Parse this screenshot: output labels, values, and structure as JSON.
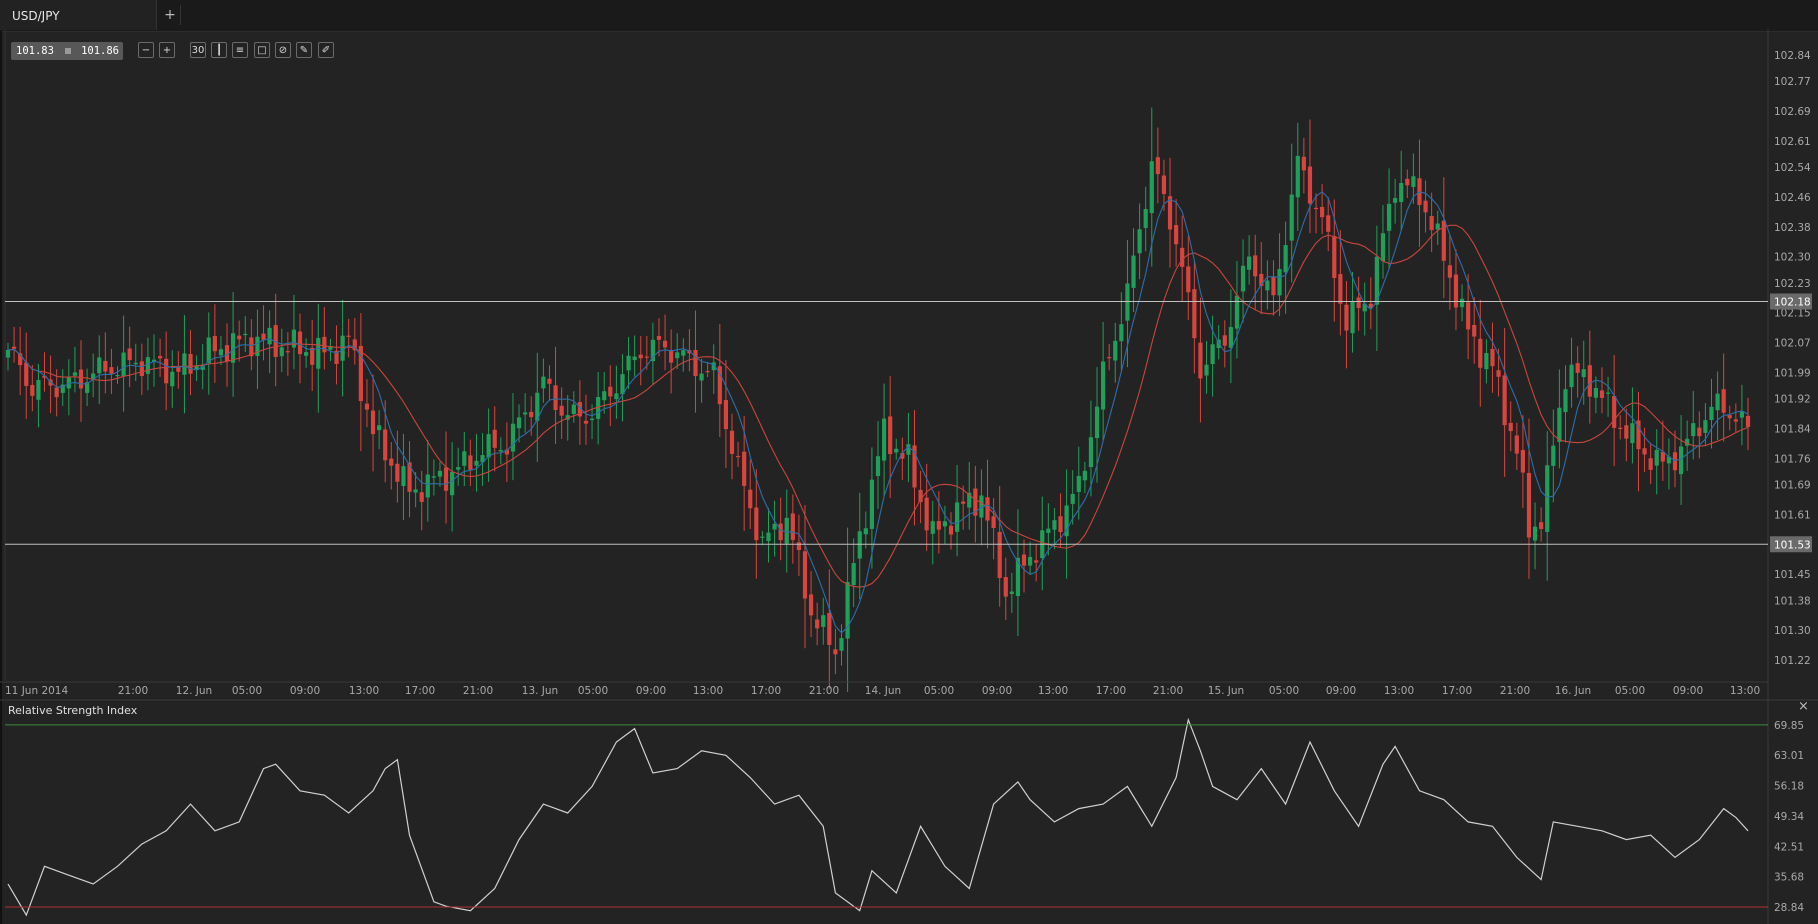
{
  "tab": {
    "label": "USD/JPY",
    "add_label": "+"
  },
  "quote": {
    "bid": "101.83",
    "ask": "101.86"
  },
  "toolbar": {
    "items": [
      {
        "name": "zoom-out-button",
        "glyph": "−"
      },
      {
        "name": "zoom-in-button",
        "glyph": "+"
      },
      {
        "name": "timeframe-button",
        "glyph": "30"
      },
      {
        "name": "chart-type-button",
        "glyph": "┃"
      },
      {
        "name": "indicators-button",
        "glyph": "≡"
      },
      {
        "name": "studies-button",
        "glyph": "□"
      },
      {
        "name": "template-button",
        "glyph": "⊘"
      },
      {
        "name": "draw-button",
        "glyph": "✎"
      },
      {
        "name": "pen-button",
        "glyph": "✐"
      }
    ]
  },
  "colors": {
    "background": "#232323",
    "up": "#1fa05a",
    "down": "#d9443e",
    "ma_fast": "#2d6ea8",
    "ma_slow": "#c8463c",
    "rsi_line": "#d0d0d0",
    "rsi_upper": "#3d8a3d",
    "rsi_lower": "#b03030",
    "level_line": "#bfbfbf"
  },
  "chart_data": [
    {
      "type": "candlestick",
      "symbol": "USD/JPY",
      "ylim": [
        101.18,
        102.88
      ],
      "y_ticks": [
        "102.84",
        "102.77",
        "102.69",
        "102.61",
        "102.54",
        "102.46",
        "102.38",
        "102.30",
        "102.23",
        "102.15",
        "102.07",
        "101.99",
        "101.92",
        "101.84",
        "101.76",
        "101.69",
        "101.61",
        "101.53",
        "101.45",
        "101.38",
        "101.30",
        "101.22"
      ],
      "x_ticks": [
        "11 Jun 2014",
        "21:00",
        "12. Jun",
        "05:00",
        "09:00",
        "13:00",
        "17:00",
        "21:00",
        "13. Jun",
        "05:00",
        "09:00",
        "13:00",
        "17:00",
        "21:00",
        "14. Jun",
        "05:00",
        "09:00",
        "13:00",
        "17:00",
        "21:00",
        "15. Jun",
        "05:00",
        "09:00",
        "13:00",
        "17:00",
        "21:00",
        "16. Jun",
        "05:00",
        "09:00",
        "13:00"
      ],
      "horizontal_levels": [
        "102.18",
        "101.53"
      ],
      "key_points": [
        {
          "i": 0,
          "c": 102.05
        },
        {
          "i": 4,
          "c": 101.95
        },
        {
          "i": 10,
          "c": 101.96
        },
        {
          "i": 16,
          "c": 102.0
        },
        {
          "i": 22,
          "c": 102.02
        },
        {
          "i": 28,
          "c": 101.99
        },
        {
          "i": 34,
          "c": 102.05
        },
        {
          "i": 40,
          "c": 102.08
        },
        {
          "i": 46,
          "c": 102.06
        },
        {
          "i": 52,
          "c": 102.04
        },
        {
          "i": 56,
          "c": 102.08
        },
        {
          "i": 60,
          "c": 101.83
        },
        {
          "i": 66,
          "c": 101.67
        },
        {
          "i": 70,
          "c": 101.7
        },
        {
          "i": 74,
          "c": 101.73
        },
        {
          "i": 78,
          "c": 101.78
        },
        {
          "i": 82,
          "c": 101.8
        },
        {
          "i": 88,
          "c": 101.96
        },
        {
          "i": 92,
          "c": 101.87
        },
        {
          "i": 96,
          "c": 101.88
        },
        {
          "i": 100,
          "c": 101.96
        },
        {
          "i": 104,
          "c": 102.05
        },
        {
          "i": 108,
          "c": 102.06
        },
        {
          "i": 112,
          "c": 102.02
        },
        {
          "i": 116,
          "c": 101.98
        },
        {
          "i": 120,
          "c": 101.73
        },
        {
          "i": 124,
          "c": 101.53
        },
        {
          "i": 128,
          "c": 101.6
        },
        {
          "i": 132,
          "c": 101.35
        },
        {
          "i": 136,
          "c": 101.24
        },
        {
          "i": 140,
          "c": 101.55
        },
        {
          "i": 144,
          "c": 101.83
        },
        {
          "i": 148,
          "c": 101.75
        },
        {
          "i": 152,
          "c": 101.55
        },
        {
          "i": 156,
          "c": 101.62
        },
        {
          "i": 160,
          "c": 101.66
        },
        {
          "i": 164,
          "c": 101.4
        },
        {
          "i": 168,
          "c": 101.5
        },
        {
          "i": 172,
          "c": 101.58
        },
        {
          "i": 176,
          "c": 101.68
        },
        {
          "i": 180,
          "c": 101.98
        },
        {
          "i": 184,
          "c": 102.2
        },
        {
          "i": 188,
          "c": 102.55
        },
        {
          "i": 192,
          "c": 102.35
        },
        {
          "i": 196,
          "c": 102.0
        },
        {
          "i": 200,
          "c": 102.08
        },
        {
          "i": 204,
          "c": 102.3
        },
        {
          "i": 208,
          "c": 102.18
        },
        {
          "i": 212,
          "c": 102.55
        },
        {
          "i": 216,
          "c": 102.4
        },
        {
          "i": 220,
          "c": 102.12
        },
        {
          "i": 224,
          "c": 102.2
        },
        {
          "i": 228,
          "c": 102.5
        },
        {
          "i": 232,
          "c": 102.47
        },
        {
          "i": 236,
          "c": 102.3
        },
        {
          "i": 240,
          "c": 102.1
        },
        {
          "i": 244,
          "c": 102.0
        },
        {
          "i": 248,
          "c": 101.78
        },
        {
          "i": 250,
          "c": 101.57
        },
        {
          "i": 252,
          "c": 101.6
        },
        {
          "i": 256,
          "c": 101.99
        },
        {
          "i": 260,
          "c": 101.97
        },
        {
          "i": 264,
          "c": 101.87
        },
        {
          "i": 268,
          "c": 101.79
        },
        {
          "i": 272,
          "c": 101.74
        },
        {
          "i": 276,
          "c": 101.8
        },
        {
          "i": 280,
          "c": 101.9
        },
        {
          "i": 284,
          "c": 101.88
        },
        {
          "i": 286,
          "c": 101.83
        }
      ]
    },
    {
      "type": "line",
      "title": "Relative Strength Index",
      "ylim": [
        25,
        75
      ],
      "y_ticks": [
        "69.85",
        "63.01",
        "56.18",
        "49.34",
        "42.51",
        "35.68",
        "28.84"
      ],
      "levels": [
        69.85,
        28.84
      ],
      "points": [
        [
          0,
          34
        ],
        [
          3,
          27
        ],
        [
          6,
          38
        ],
        [
          10,
          36
        ],
        [
          14,
          34
        ],
        [
          18,
          38
        ],
        [
          22,
          43
        ],
        [
          26,
          46
        ],
        [
          30,
          52
        ],
        [
          34,
          46
        ],
        [
          38,
          48
        ],
        [
          42,
          60
        ],
        [
          44,
          61
        ],
        [
          48,
          55
        ],
        [
          52,
          54
        ],
        [
          56,
          50
        ],
        [
          60,
          55
        ],
        [
          62,
          60
        ],
        [
          64,
          62
        ],
        [
          66,
          45
        ],
        [
          70,
          30
        ],
        [
          72,
          29
        ],
        [
          76,
          28
        ],
        [
          80,
          33
        ],
        [
          84,
          44
        ],
        [
          88,
          52
        ],
        [
          92,
          50
        ],
        [
          96,
          56
        ],
        [
          100,
          66
        ],
        [
          103,
          69
        ],
        [
          106,
          59
        ],
        [
          110,
          60
        ],
        [
          114,
          64
        ],
        [
          118,
          63
        ],
        [
          122,
          58
        ],
        [
          126,
          52
        ],
        [
          130,
          54
        ],
        [
          134,
          47
        ],
        [
          136,
          32
        ],
        [
          140,
          28
        ],
        [
          142,
          37
        ],
        [
          146,
          32
        ],
        [
          150,
          47
        ],
        [
          154,
          38
        ],
        [
          158,
          33
        ],
        [
          162,
          52
        ],
        [
          166,
          57
        ],
        [
          168,
          53
        ],
        [
          172,
          48
        ],
        [
          176,
          51
        ],
        [
          180,
          52
        ],
        [
          184,
          56
        ],
        [
          188,
          47
        ],
        [
          192,
          58
        ],
        [
          194,
          71
        ],
        [
          196,
          64
        ],
        [
          198,
          56
        ],
        [
          202,
          53
        ],
        [
          206,
          60
        ],
        [
          210,
          52
        ],
        [
          214,
          66
        ],
        [
          218,
          55
        ],
        [
          222,
          47
        ],
        [
          226,
          61
        ],
        [
          228,
          65
        ],
        [
          232,
          55
        ],
        [
          236,
          53
        ],
        [
          240,
          48
        ],
        [
          244,
          47
        ],
        [
          248,
          40
        ],
        [
          252,
          35
        ],
        [
          254,
          48
        ],
        [
          258,
          47
        ],
        [
          262,
          46
        ],
        [
          266,
          44
        ],
        [
          270,
          45
        ],
        [
          274,
          40
        ],
        [
          278,
          44
        ],
        [
          282,
          51
        ],
        [
          284,
          49
        ],
        [
          286,
          46
        ]
      ]
    }
  ]
}
